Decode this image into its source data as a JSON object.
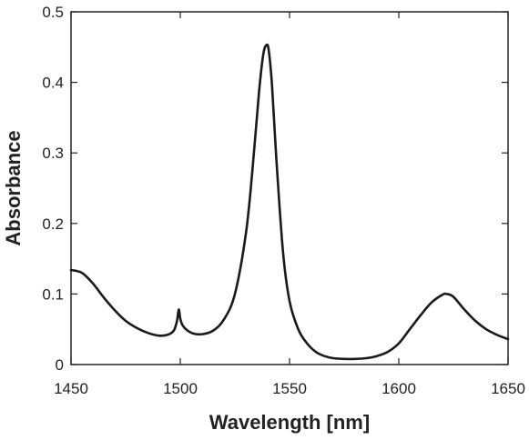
{
  "chart_data": {
    "type": "line",
    "title": "",
    "xlabel": "Wavelength [nm]",
    "ylabel": "Absorbance",
    "xlim": [
      1450,
      1650
    ],
    "ylim": [
      0,
      0.5
    ],
    "x_ticks": [
      "1450",
      "1500",
      "1550",
      "1600",
      "1650"
    ],
    "y_ticks": [
      "0",
      "0.1",
      "0.2",
      "0.3",
      "0.4",
      "0.5"
    ],
    "grid": false,
    "legend": "none",
    "line_color": "#1a1a1a",
    "series": [
      {
        "x": [
          1450,
          1455,
          1460,
          1465,
          1470,
          1475,
          1480,
          1485,
          1490,
          1494,
          1497,
          1498.5,
          1499.3,
          1500,
          1501,
          1503,
          1506,
          1510,
          1515,
          1520,
          1525,
          1530,
          1533,
          1536,
          1538,
          1539.5,
          1540.5,
          1542,
          1544,
          1547,
          1550,
          1554,
          1558,
          1562,
          1566,
          1570,
          1575,
          1580,
          1585,
          1590,
          1595,
          1600,
          1605,
          1610,
          1615,
          1620,
          1622,
          1625,
          1630,
          1635,
          1640,
          1645,
          1650
        ],
        "y": [
          0.134,
          0.13,
          0.115,
          0.095,
          0.077,
          0.062,
          0.052,
          0.045,
          0.041,
          0.042,
          0.048,
          0.062,
          0.078,
          0.065,
          0.056,
          0.049,
          0.044,
          0.043,
          0.048,
          0.064,
          0.1,
          0.185,
          0.275,
          0.385,
          0.44,
          0.453,
          0.445,
          0.395,
          0.29,
          0.16,
          0.09,
          0.05,
          0.03,
          0.018,
          0.012,
          0.009,
          0.008,
          0.008,
          0.009,
          0.012,
          0.018,
          0.03,
          0.05,
          0.07,
          0.088,
          0.099,
          0.1,
          0.096,
          0.078,
          0.062,
          0.05,
          0.042,
          0.036
        ]
      }
    ]
  }
}
